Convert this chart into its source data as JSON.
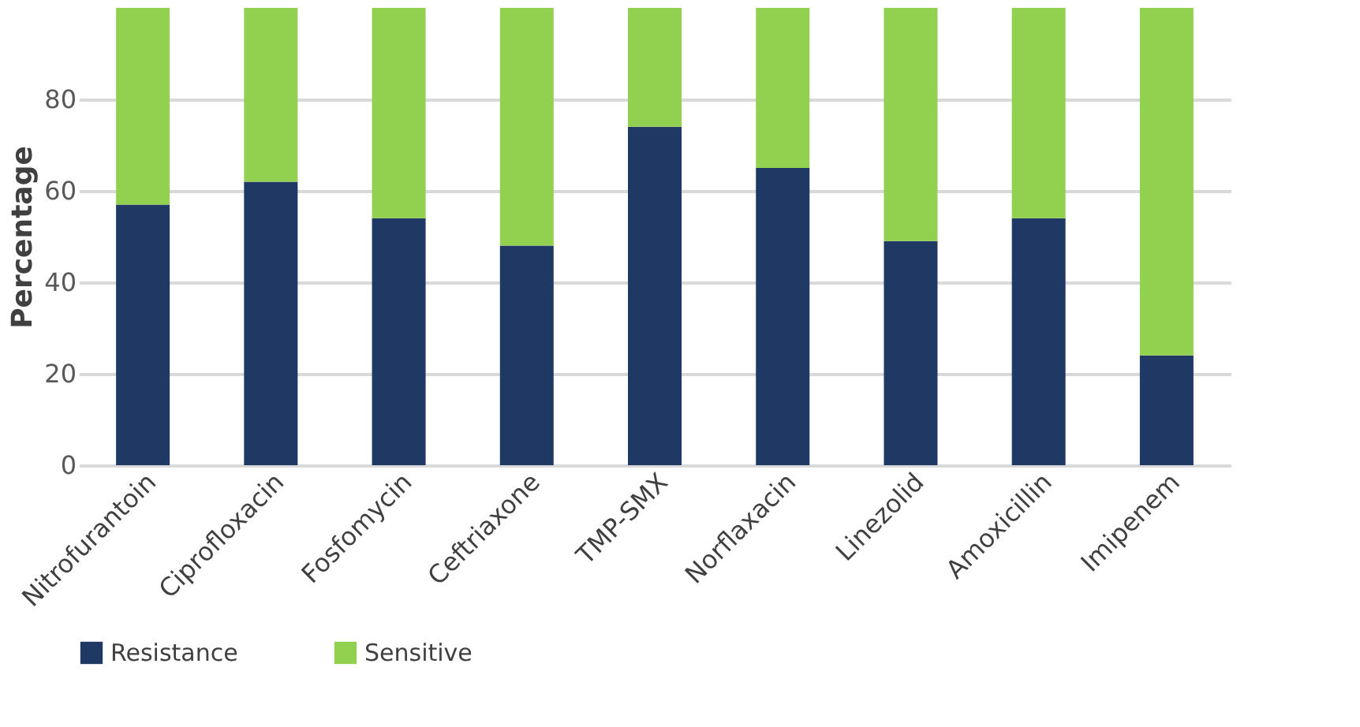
{
  "chart_data": {
    "type": "bar",
    "stacked": true,
    "ylabel": "Percentage",
    "categories": [
      "Nitrofurantoin",
      "Ciprofloxacin",
      "Fosfomycin",
      "Ceftriaxone",
      "TMP-SMX",
      "Norflaxacin",
      "Linezolid",
      "Amoxicillin",
      "Imipenem"
    ],
    "series": [
      {
        "name": "Resistance",
        "color": "#1f3864",
        "values": [
          57,
          62,
          54,
          48,
          74,
          65,
          49,
          54,
          24
        ]
      },
      {
        "name": "Sensitive",
        "color": "#92d050",
        "values": [
          43,
          38,
          46,
          52,
          26,
          35,
          51,
          46,
          76
        ]
      }
    ],
    "ylim": [
      0,
      100
    ],
    "yticks": [
      0,
      20,
      40,
      60,
      80
    ],
    "grid": "y",
    "legend": "bottom"
  }
}
